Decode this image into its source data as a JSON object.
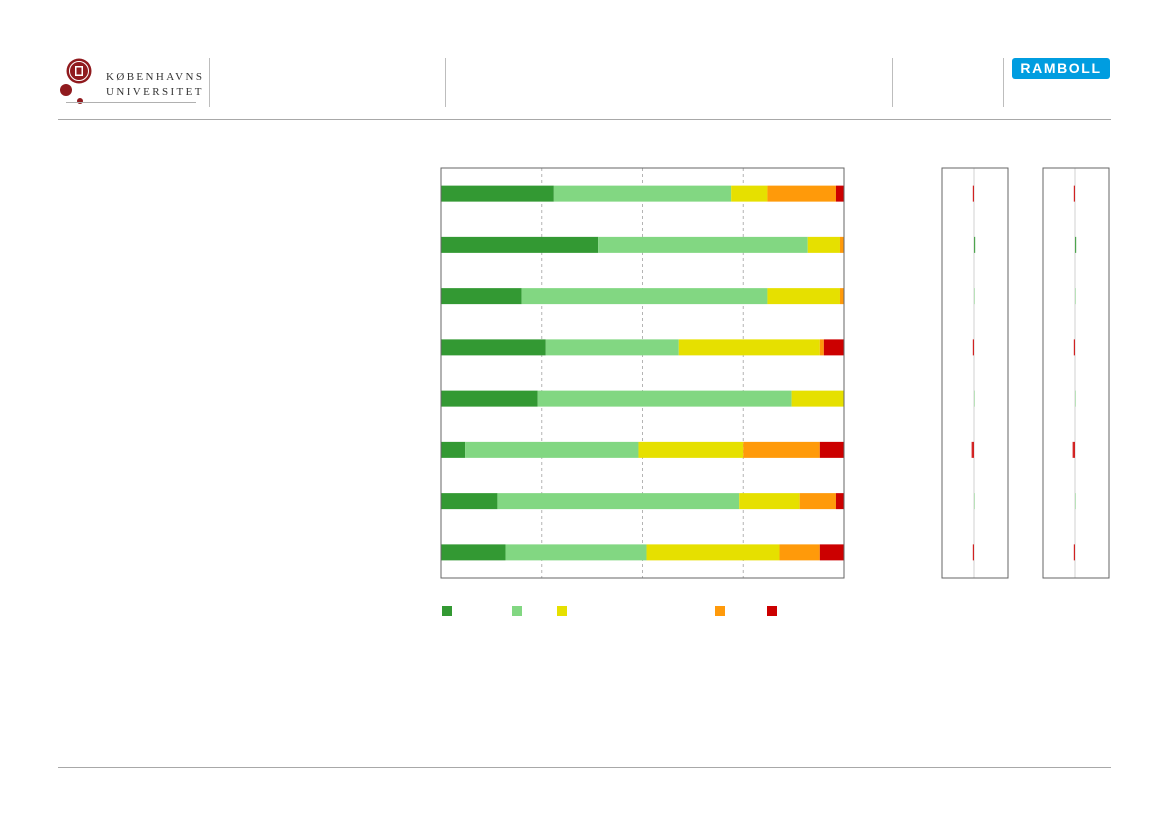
{
  "header": {
    "university_name_line1": "KØBENHAVNS",
    "university_name_line2": "UNIVERSITET",
    "partner_logo_text": "RAMBOLL"
  },
  "colors": {
    "brand_red": "#901a1e",
    "ramboll_blue": "#009de0",
    "very_positive": "#339933",
    "positive": "#82d782",
    "neutral": "#e6e000",
    "negative": "#ff9a0a",
    "very_negative": "#cc0000",
    "grid": "#b4b4b4"
  },
  "chart_data": [
    {
      "type": "bar",
      "orientation": "horizontal",
      "stacked": true,
      "normalized": true,
      "xlim": [
        0,
        100
      ],
      "grid": true,
      "categories": [
        "",
        "",
        "",
        "",
        "",
        "",
        "",
        ""
      ],
      "series": [
        {
          "name": "",
          "color": "#339933",
          "values": [
            28,
            39,
            20,
            26,
            24,
            6,
            14,
            16
          ]
        },
        {
          "name": "",
          "color": "#82d782",
          "values": [
            44,
            52,
            61,
            33,
            63,
            43,
            60,
            35
          ]
        },
        {
          "name": "",
          "color": "#e6e000",
          "values": [
            9,
            8,
            18,
            35,
            13,
            26,
            15,
            33
          ]
        },
        {
          "name": "",
          "color": "#ff9a0a",
          "values": [
            17,
            1,
            1,
            1,
            0,
            19,
            9,
            10
          ]
        },
        {
          "name": "",
          "color": "#cc0000",
          "values": [
            2,
            0,
            0,
            5,
            0,
            6,
            2,
            6
          ]
        }
      ],
      "legend": "bottom"
    },
    {
      "type": "bar",
      "orientation": "horizontal",
      "title": "",
      "grid": false,
      "values": [
        -1,
        1,
        0,
        -1,
        0,
        -2,
        0,
        -1
      ]
    },
    {
      "type": "bar",
      "orientation": "horizontal",
      "title": "",
      "grid": false,
      "values": [
        -1,
        1,
        0,
        -1,
        0,
        -2,
        0,
        -1
      ]
    }
  ]
}
